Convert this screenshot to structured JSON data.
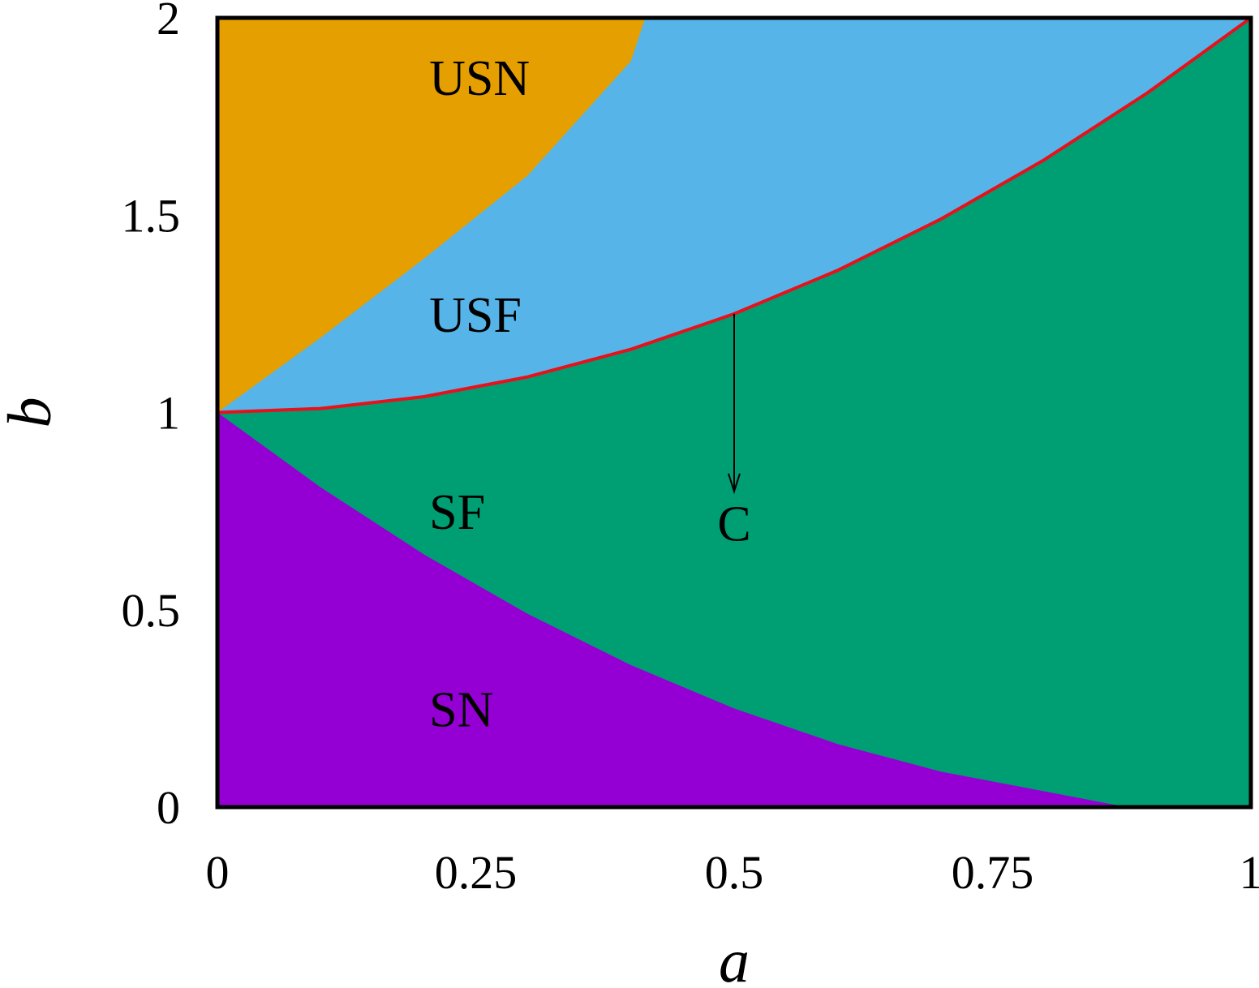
{
  "chart_data": {
    "type": "area",
    "xlabel": "a",
    "ylabel": "b",
    "xlim": [
      0,
      1
    ],
    "ylim": [
      0,
      2
    ],
    "x_ticks": [
      {
        "value": 0,
        "label": "0"
      },
      {
        "value": 0.25,
        "label": "0.25"
      },
      {
        "value": 0.5,
        "label": "0.5"
      },
      {
        "value": 0.75,
        "label": "0.75"
      },
      {
        "value": 1,
        "label": "1"
      }
    ],
    "y_ticks": [
      {
        "value": 0,
        "label": "0"
      },
      {
        "value": 0.5,
        "label": "0.5"
      },
      {
        "value": 1,
        "label": "1"
      },
      {
        "value": 1.5,
        "label": "1.5"
      },
      {
        "value": 2,
        "label": "2"
      }
    ],
    "grid": false,
    "regions": [
      {
        "label": "USN",
        "color": "#E69F00",
        "label_pos": [
          0.205,
          1.85
        ]
      },
      {
        "label": "USF",
        "color": "#56B4E9",
        "label_pos": [
          0.205,
          1.25
        ]
      },
      {
        "label": "SF",
        "color": "#009E73",
        "label_pos": [
          0.205,
          0.75
        ]
      },
      {
        "label": "SN",
        "color": "#9400D3",
        "label_pos": [
          0.205,
          0.25
        ]
      }
    ],
    "boundaries": {
      "usn_usf": [
        [
          0,
          1.0
        ],
        [
          0.1,
          1.19
        ],
        [
          0.2,
          1.39
        ],
        [
          0.3,
          1.6
        ],
        [
          0.4,
          1.89
        ],
        [
          0.414,
          2.0
        ]
      ],
      "sn_sf": [
        [
          0,
          1.0
        ],
        [
          0.1,
          0.81
        ],
        [
          0.2,
          0.64
        ],
        [
          0.3,
          0.49
        ],
        [
          0.4,
          0.36
        ],
        [
          0.5,
          0.25
        ],
        [
          0.6,
          0.16
        ],
        [
          0.7,
          0.09
        ],
        [
          0.8,
          0.04
        ],
        [
          0.88,
          0.0
        ]
      ],
      "red_curve": [
        [
          0,
          1.0
        ],
        [
          0.1,
          1.01
        ],
        [
          0.2,
          1.04
        ],
        [
          0.3,
          1.09
        ],
        [
          0.4,
          1.16
        ],
        [
          0.5,
          1.25
        ],
        [
          0.6,
          1.36
        ],
        [
          0.7,
          1.49
        ],
        [
          0.8,
          1.64
        ],
        [
          0.9,
          1.81
        ],
        [
          1.0,
          2.0
        ]
      ],
      "red_color": "#E8101A"
    },
    "annotations": [
      {
        "text": "C",
        "arrow_from": [
          0.5,
          1.25
        ],
        "arrow_to": [
          0.5,
          0.8
        ],
        "text_pos": [
          0.5,
          0.72
        ]
      }
    ]
  }
}
